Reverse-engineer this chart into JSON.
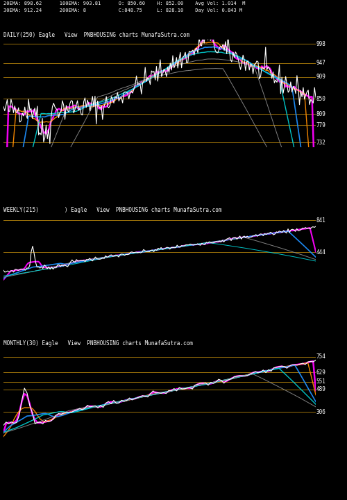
{
  "bg_color": "#000000",
  "panel_labels": [
    "DAILY(250) Eagle   View  PNBHOUSING charts MunafaSutra.com",
    "WEEKLY(215)        ) Eagle   View  PNBHOUSING charts MunafaSutra.com",
    "MONTHLY(30) Eagle   View  PNBHOUSING charts MunafaSutra.com"
  ],
  "header_line1": "20EMA: 898.62      100EMA: 903.81      O: 850.60    H: 852.00    Avg Vol: 1.014  M",
  "header_line2": "30EMA: 912.24      200EMA: 8           C:848.75     L: 828.10    Day Vol: 0.843 M",
  "panel1": {
    "ylim": [
      720,
      1010
    ],
    "y_labels": [
      998,
      947,
      909,
      850,
      809,
      779,
      732
    ],
    "hline_color": "#b8860b",
    "ema_colors": [
      "#ff00ff",
      "#ff8c00",
      "#1e90ff",
      "#00ced1",
      "#888888",
      "#888888"
    ],
    "ema_lws": [
      1.8,
      1.0,
      1.2,
      1.0,
      0.7,
      0.7
    ]
  },
  "panel2": {
    "ylim": [
      50,
      920
    ],
    "y_labels": [
      841,
      444
    ],
    "hline_color": "#b8860b",
    "ema_colors": [
      "#ff00ff",
      "#1e90ff",
      "#888888",
      "#00ced1"
    ],
    "ema_lws": [
      1.5,
      1.2,
      0.7,
      0.7
    ]
  },
  "panel3": {
    "ylim": [
      100,
      830
    ],
    "y_labels": [
      754,
      629,
      551,
      489,
      306
    ],
    "hline_color": "#b8860b",
    "ema_colors": [
      "#ff00ff",
      "#ff8c00",
      "#1e90ff",
      "#00ced1",
      "#888888"
    ],
    "ema_lws": [
      1.8,
      1.0,
      1.2,
      1.0,
      0.7
    ]
  }
}
